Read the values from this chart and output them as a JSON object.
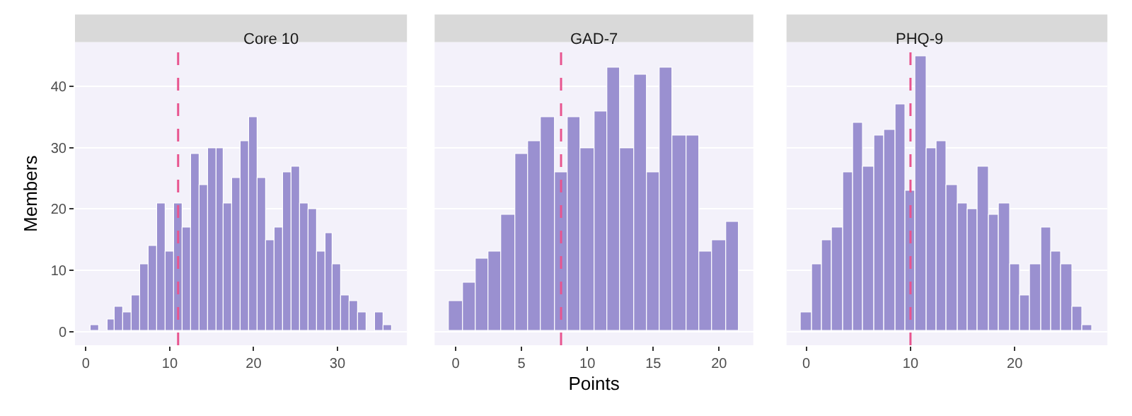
{
  "chart_data": [
    {
      "type": "histogram",
      "title": "Core 10",
      "ylabel": "Members",
      "color": "#9a90d0",
      "bins": [
        -0.5,
        0.5,
        1.5,
        2.5,
        3.5,
        4.5,
        5.5,
        6.5,
        7.5,
        8.5,
        9.5,
        10.5,
        11.5,
        12.5,
        13.5,
        14.5,
        15.5,
        16.5,
        17.5,
        18.5,
        19.5,
        20.5,
        21.5,
        22.5,
        23.5,
        24.5,
        25.5,
        26.5,
        27.5,
        28.5,
        29.5,
        30.5,
        31.5,
        32.5,
        33.5,
        34.5,
        35.5,
        36.5
      ],
      "values": [
        0,
        1,
        0,
        2,
        4,
        3,
        6,
        11,
        14,
        21,
        13,
        21,
        17,
        29,
        24,
        30,
        30,
        21,
        25,
        31,
        35,
        25,
        15,
        17,
        26,
        27,
        21,
        20,
        13,
        16,
        11,
        6,
        5,
        3,
        0,
        3,
        1
      ],
      "xlim": [
        -1.3,
        38.3
      ],
      "xticks": [
        0,
        10,
        20,
        30
      ],
      "ylim": [
        -2.25,
        47.25
      ],
      "yticks": [
        0,
        10,
        20,
        30,
        40
      ],
      "grid": "y",
      "ref_lines": [
        {
          "axis": "x",
          "value": 11,
          "color": "#e8558f",
          "line_style": "dashed"
        }
      ]
    },
    {
      "type": "histogram",
      "title": "GAD-7",
      "xlabel": "Points",
      "color": "#9a90d0",
      "bins": [
        -0.5,
        0.5,
        1.5,
        2.5,
        3.5,
        4.5,
        5.5,
        6.5,
        7.5,
        8.5,
        9.5,
        10.5,
        11.5,
        12.5,
        13.5,
        14.5,
        15.5,
        16.5,
        17.5,
        18.5,
        19.5,
        20.5,
        21.5
      ],
      "values": [
        5,
        8,
        12,
        13,
        19,
        29,
        31,
        35,
        26,
        35,
        30,
        36,
        43,
        30,
        42,
        26,
        43,
        32,
        32,
        13,
        15,
        18
      ],
      "xlim": [
        -1.6,
        22.6
      ],
      "xticks": [
        0,
        5,
        10,
        15,
        20
      ],
      "ylim": [
        -2.25,
        47.25
      ],
      "yticks": [
        0,
        10,
        20,
        30,
        40
      ],
      "grid": "y",
      "tick_labels": "x",
      "ref_lines": [
        {
          "axis": "x",
          "value": 8,
          "color": "#e8558f",
          "line_style": "dashed"
        }
      ]
    },
    {
      "type": "histogram",
      "title": "PHQ-9",
      "color": "#9a90d0",
      "bins": [
        -0.5,
        0.5,
        1.5,
        2.5,
        3.5,
        4.5,
        5.5,
        6.5,
        7.5,
        8.5,
        9.5,
        10.5,
        11.5,
        12.5,
        13.5,
        14.5,
        15.5,
        16.5,
        17.5,
        18.5,
        19.5,
        20.5,
        21.5,
        22.5,
        23.5,
        24.5,
        25.5,
        26.5,
        27.5
      ],
      "values": [
        3,
        11,
        15,
        17,
        26,
        34,
        27,
        32,
        33,
        37,
        23,
        45,
        30,
        31,
        24,
        21,
        20,
        27,
        19,
        21,
        11,
        6,
        11,
        17,
        13,
        11,
        4,
        1
      ],
      "xlim": [
        -1.9,
        28.9
      ],
      "xticks": [
        0,
        10,
        20
      ],
      "ylim": [
        -2.25,
        47.25
      ],
      "yticks": [
        0,
        10,
        20,
        30,
        40
      ],
      "grid": "y",
      "tick_labels": "x",
      "ref_lines": [
        {
          "axis": "x",
          "value": 10,
          "color": "#e8558f",
          "line_style": "dashed"
        }
      ]
    }
  ]
}
